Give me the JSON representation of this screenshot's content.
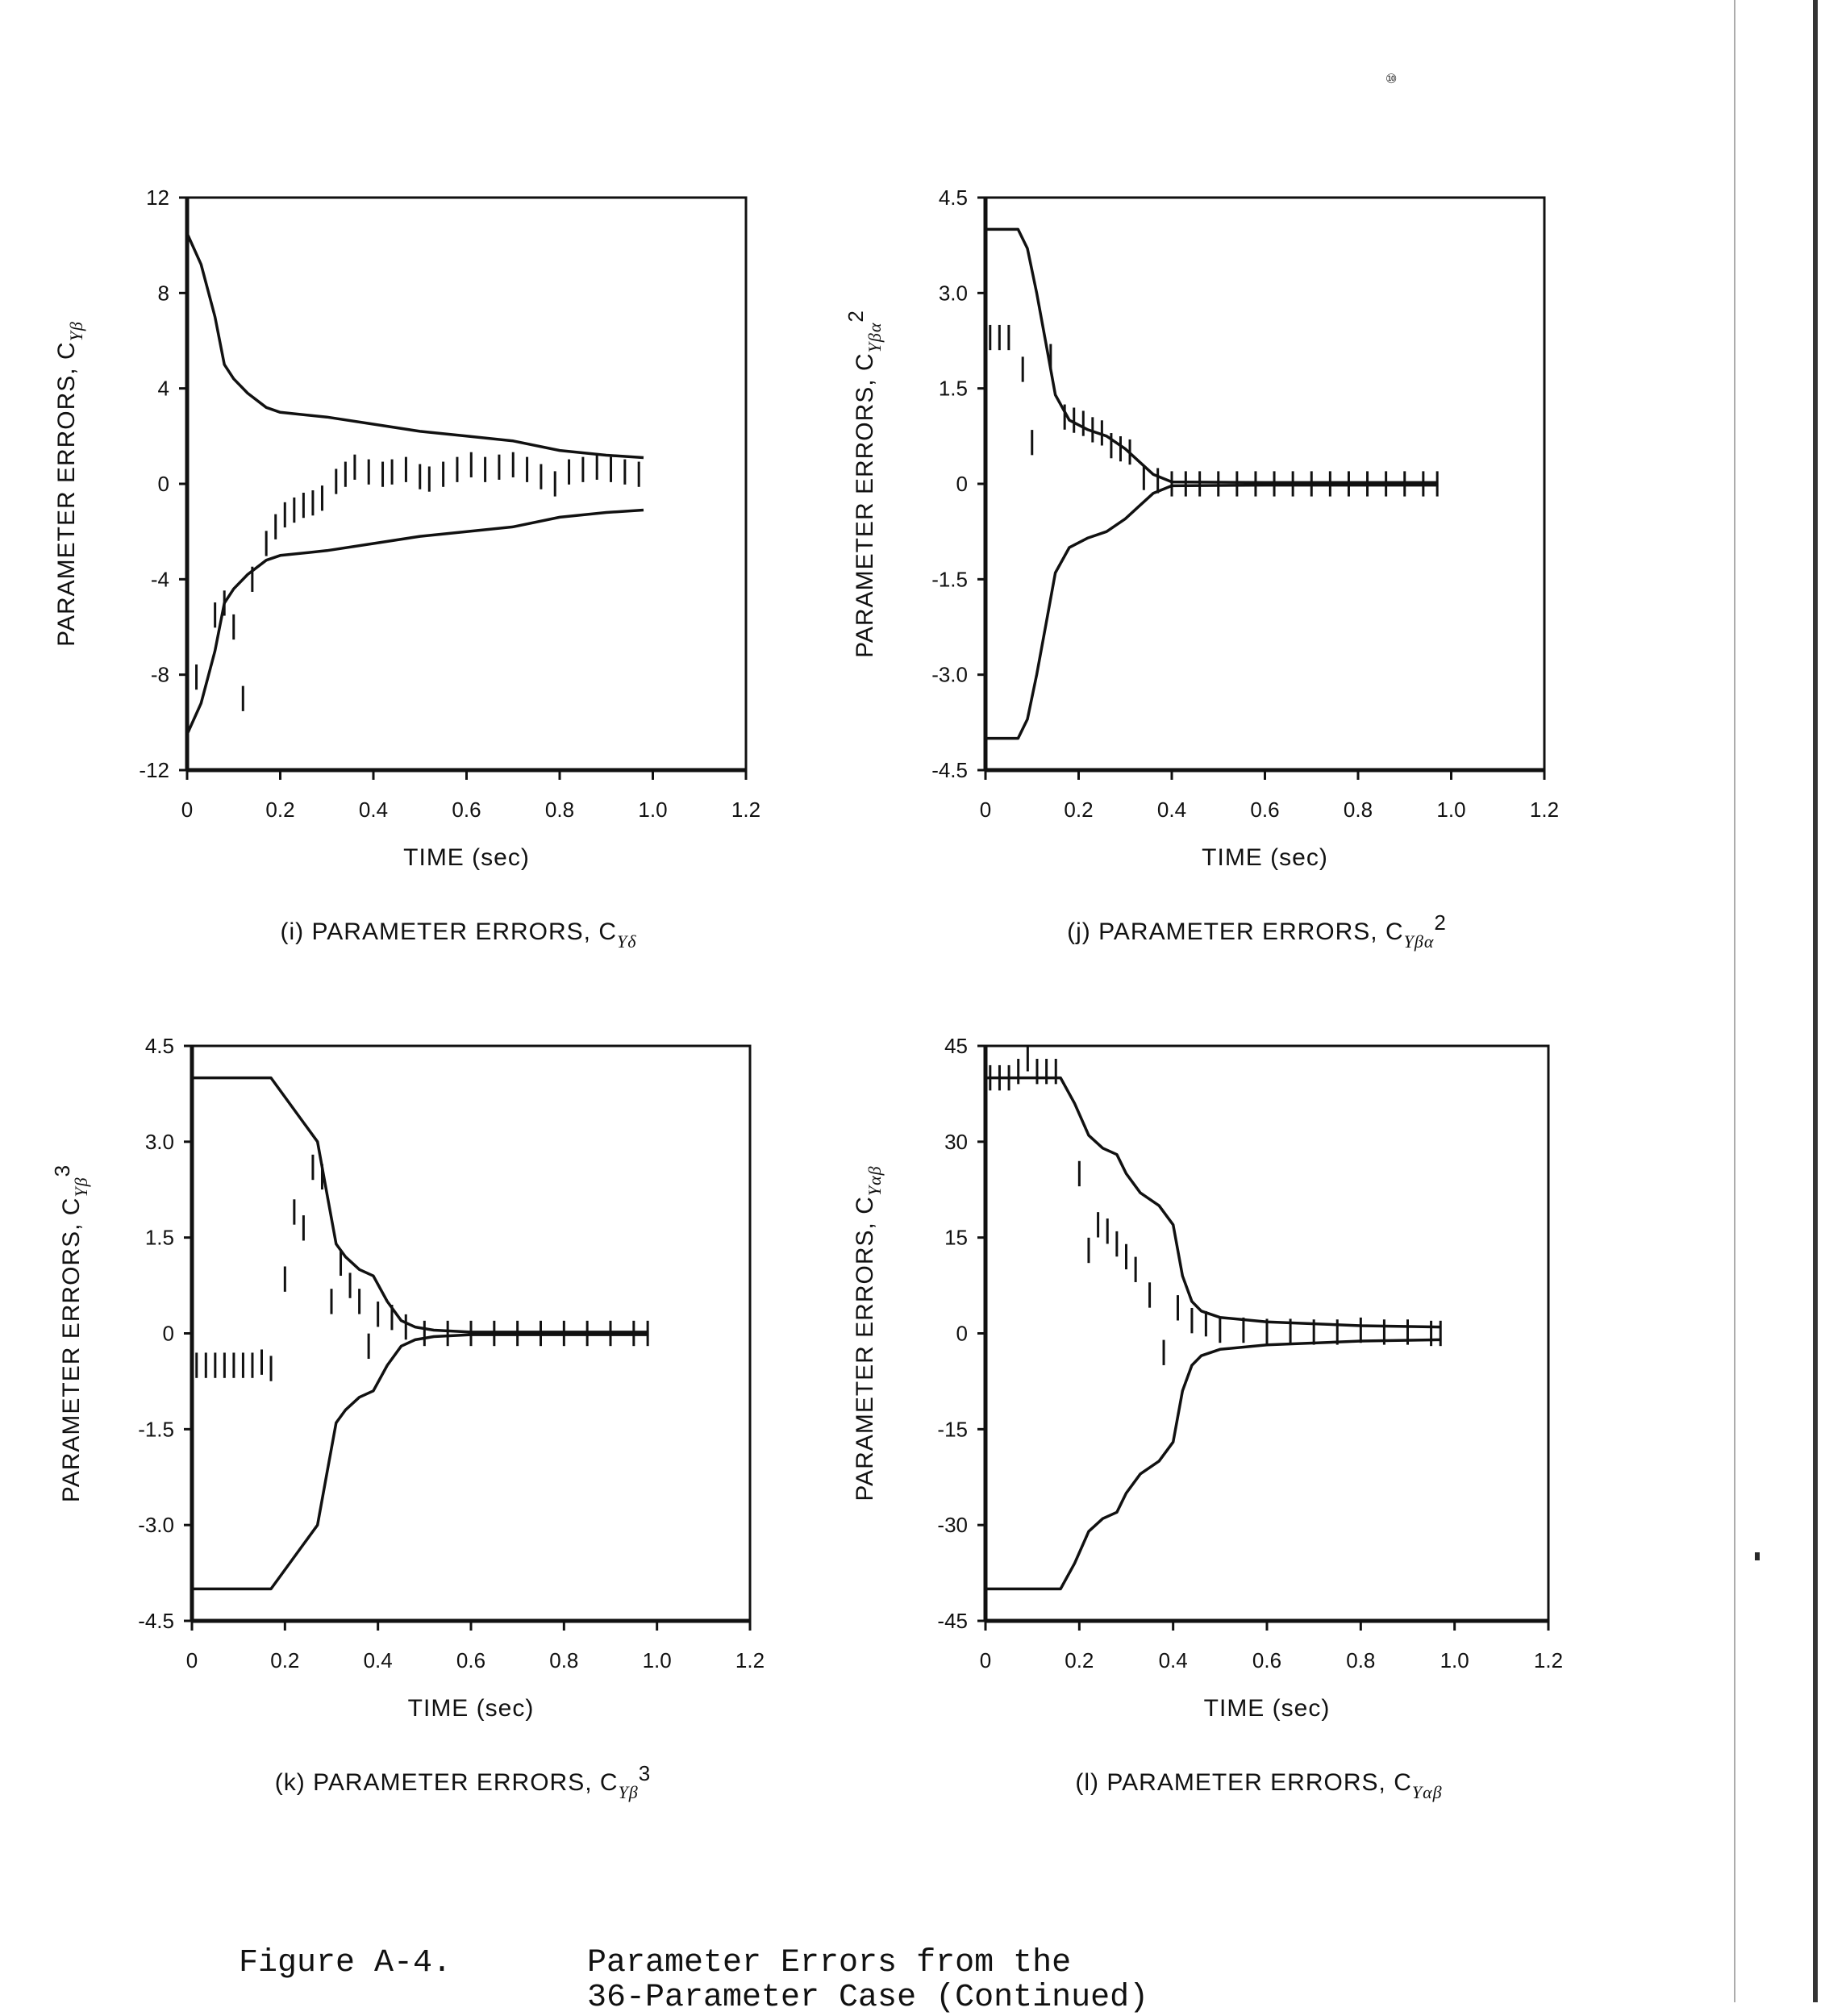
{
  "page": {
    "page_mark": "⑩",
    "figure_label": "Figure A-4.",
    "figure_title_line1": "Parameter Errors from the",
    "figure_title_line2": "36-Parameter Case (Continued)"
  },
  "chart_data": [
    {
      "id": "i",
      "type": "line",
      "title": "(i) PARAMETER ERRORS, C",
      "title_sub": "Yδ",
      "xlabel": "TIME (sec)",
      "ylabel": "PARAMETER ERRORS, C",
      "ylabel_sub": "Yβ",
      "xlim": [
        0,
        1.2
      ],
      "ylim": [
        -12,
        12
      ],
      "xticks": [
        "0",
        "0.2",
        "0.4",
        "0.6",
        "0.8",
        "1.0",
        "1.2"
      ],
      "yticks": [
        "12",
        "8",
        "4",
        "0",
        "-4",
        "-8",
        "-12"
      ],
      "ytick_values": [
        12,
        8,
        4,
        0,
        -4,
        -8,
        -12
      ],
      "grid": false,
      "series": [
        {
          "name": "upper bound",
          "style": "solid",
          "x": [
            0,
            0.03,
            0.06,
            0.08,
            0.1,
            0.13,
            0.17,
            0.2,
            0.3,
            0.4,
            0.5,
            0.6,
            0.7,
            0.8,
            0.9,
            0.98
          ],
          "y": [
            10.5,
            9.2,
            7.0,
            5.0,
            4.4,
            3.8,
            3.2,
            3.0,
            2.8,
            2.5,
            2.2,
            2.0,
            1.8,
            1.4,
            1.2,
            1.1
          ]
        },
        {
          "name": "lower bound",
          "style": "solid",
          "x": [
            0,
            0.03,
            0.06,
            0.08,
            0.1,
            0.13,
            0.17,
            0.2,
            0.3,
            0.4,
            0.5,
            0.6,
            0.7,
            0.8,
            0.9,
            0.98
          ],
          "y": [
            -10.5,
            -9.2,
            -7.0,
            -5.0,
            -4.4,
            -3.8,
            -3.2,
            -3.0,
            -2.8,
            -2.5,
            -2.2,
            -2.0,
            -1.8,
            -1.4,
            -1.2,
            -1.1
          ]
        },
        {
          "name": "parameter error",
          "style": "ticks",
          "x": [
            0.02,
            0.06,
            0.08,
            0.1,
            0.12,
            0.14,
            0.17,
            0.19,
            0.21,
            0.23,
            0.25,
            0.27,
            0.29,
            0.32,
            0.34,
            0.36,
            0.39,
            0.42,
            0.44,
            0.47,
            0.5,
            0.52,
            0.55,
            0.58,
            0.61,
            0.64,
            0.67,
            0.7,
            0.73,
            0.76,
            0.79,
            0.82,
            0.85,
            0.88,
            0.91,
            0.94,
            0.97
          ],
          "y": [
            -8.1,
            -5.5,
            -5.0,
            -6.0,
            -9.0,
            -4.0,
            -2.5,
            -1.8,
            -1.3,
            -1.1,
            -0.9,
            -0.8,
            -0.6,
            0.1,
            0.4,
            0.7,
            0.5,
            0.4,
            0.5,
            0.6,
            0.3,
            0.2,
            0.4,
            0.6,
            0.8,
            0.6,
            0.7,
            0.8,
            0.6,
            0.3,
            0.0,
            0.5,
            0.6,
            0.7,
            0.6,
            0.5,
            0.4
          ]
        }
      ]
    },
    {
      "id": "j",
      "type": "line",
      "title": "(j) PARAMETER ERRORS, C",
      "title_sub": "Yβα",
      "title_sup": "2",
      "xlabel": "TIME (sec)",
      "ylabel": "PARAMETER ERRORS, C",
      "ylabel_sub": "Yβα",
      "ylabel_sup": "2",
      "xlim": [
        0,
        1.2
      ],
      "ylim": [
        -4.5,
        4.5
      ],
      "xticks": [
        "0",
        "0.2",
        "0.4",
        "0.6",
        "0.8",
        "1.0",
        "1.2"
      ],
      "yticks": [
        "4.5",
        "3.0",
        "1.5",
        "0",
        "-1.5",
        "-3.0",
        "-4.5"
      ],
      "ytick_values": [
        4.5,
        3.0,
        1.5,
        0,
        -1.5,
        -3.0,
        -4.5
      ],
      "grid": false,
      "series": [
        {
          "name": "upper bound",
          "style": "solid",
          "x": [
            0,
            0.07,
            0.09,
            0.11,
            0.13,
            0.15,
            0.18,
            0.22,
            0.26,
            0.3,
            0.33,
            0.36,
            0.4,
            0.6,
            0.8,
            0.97
          ],
          "y": [
            4.0,
            4.0,
            3.7,
            3.0,
            2.2,
            1.4,
            1.0,
            0.85,
            0.75,
            0.55,
            0.35,
            0.15,
            0.03,
            0.02,
            0.02,
            0.02
          ]
        },
        {
          "name": "lower bound",
          "style": "solid",
          "x": [
            0,
            0.07,
            0.09,
            0.11,
            0.13,
            0.15,
            0.18,
            0.22,
            0.26,
            0.3,
            0.33,
            0.36,
            0.4,
            0.6,
            0.8,
            0.97
          ],
          "y": [
            -4.0,
            -4.0,
            -3.7,
            -3.0,
            -2.2,
            -1.4,
            -1.0,
            -0.85,
            -0.75,
            -0.55,
            -0.35,
            -0.15,
            -0.03,
            -0.02,
            -0.02,
            -0.02
          ]
        },
        {
          "name": "parameter error",
          "style": "ticks",
          "x": [
            0.01,
            0.03,
            0.05,
            0.08,
            0.1,
            0.14,
            0.17,
            0.19,
            0.21,
            0.23,
            0.25,
            0.27,
            0.29,
            0.31,
            0.34,
            0.37,
            0.4,
            0.43,
            0.46,
            0.5,
            0.54,
            0.58,
            0.62,
            0.66,
            0.7,
            0.74,
            0.78,
            0.82,
            0.86,
            0.9,
            0.94,
            0.97
          ],
          "y": [
            2.3,
            2.3,
            2.3,
            1.8,
            0.65,
            2.0,
            1.05,
            1.0,
            0.95,
            0.85,
            0.8,
            0.6,
            0.55,
            0.5,
            0.1,
            0.05,
            0.0,
            0.0,
            0.0,
            0.0,
            0.0,
            0.0,
            0.0,
            0.0,
            0.0,
            0.0,
            0.0,
            0.0,
            0.0,
            0.0,
            0.0,
            0.0
          ]
        }
      ]
    },
    {
      "id": "k",
      "type": "line",
      "title": "(k) PARAMETER ERRORS, C",
      "title_sub": "Yβ",
      "title_sup": "3",
      "xlabel": "TIME (sec)",
      "ylabel": "PARAMETER ERRORS, C",
      "ylabel_sub": "Yβ",
      "ylabel_sup": "3",
      "xlim": [
        0,
        1.2
      ],
      "ylim": [
        -4.5,
        4.5
      ],
      "xticks": [
        "0",
        "0.2",
        "0.4",
        "0.6",
        "0.8",
        "1.0",
        "1.2"
      ],
      "yticks": [
        "4.5",
        "3.0",
        "1.5",
        "0",
        "-1.5",
        "-3.0",
        "-4.5"
      ],
      "ytick_values": [
        4.5,
        3.0,
        1.5,
        0,
        -1.5,
        -3.0,
        -4.5
      ],
      "grid": false,
      "series": [
        {
          "name": "upper bound",
          "style": "solid",
          "x": [
            0,
            0.17,
            0.2,
            0.24,
            0.27,
            0.29,
            0.31,
            0.33,
            0.36,
            0.39,
            0.42,
            0.45,
            0.48,
            0.52,
            0.6,
            0.8,
            0.98
          ],
          "y": [
            4.0,
            4.0,
            3.7,
            3.3,
            3.0,
            2.2,
            1.4,
            1.2,
            1.0,
            0.9,
            0.5,
            0.2,
            0.1,
            0.05,
            0.02,
            0.02,
            0.02
          ]
        },
        {
          "name": "lower bound",
          "style": "solid",
          "x": [
            0,
            0.17,
            0.2,
            0.24,
            0.27,
            0.29,
            0.31,
            0.33,
            0.36,
            0.39,
            0.42,
            0.45,
            0.48,
            0.52,
            0.6,
            0.8,
            0.98
          ],
          "y": [
            -4.0,
            -4.0,
            -3.7,
            -3.3,
            -3.0,
            -2.2,
            -1.4,
            -1.2,
            -1.0,
            -0.9,
            -0.5,
            -0.2,
            -0.1,
            -0.05,
            -0.02,
            -0.02,
            -0.02
          ]
        },
        {
          "name": "parameter error",
          "style": "ticks",
          "x": [
            0.01,
            0.03,
            0.05,
            0.07,
            0.09,
            0.11,
            0.13,
            0.15,
            0.17,
            0.2,
            0.22,
            0.24,
            0.26,
            0.28,
            0.3,
            0.32,
            0.34,
            0.36,
            0.38,
            0.4,
            0.43,
            0.46,
            0.5,
            0.55,
            0.6,
            0.65,
            0.7,
            0.75,
            0.8,
            0.85,
            0.9,
            0.95,
            0.98
          ],
          "y": [
            -0.5,
            -0.5,
            -0.5,
            -0.5,
            -0.5,
            -0.5,
            -0.5,
            -0.45,
            -0.55,
            0.85,
            1.9,
            1.65,
            2.6,
            2.45,
            0.5,
            1.1,
            0.75,
            0.5,
            -0.2,
            0.3,
            0.25,
            0.1,
            0.0,
            0.0,
            0.0,
            0.0,
            0.0,
            0.0,
            0.0,
            0.0,
            0.0,
            0.0,
            0.0
          ]
        }
      ]
    },
    {
      "id": "l",
      "type": "line",
      "title": "(l) PARAMETER ERRORS, C",
      "title_sub": "Yαβ",
      "xlabel": "TIME (sec)",
      "ylabel": "PARAMETER ERRORS, C",
      "ylabel_sub": "Yαβ",
      "xlim": [
        0,
        1.2
      ],
      "ylim": [
        -45,
        45
      ],
      "xticks": [
        "0",
        "0.2",
        "0.4",
        "0.6",
        "0.8",
        "1.0",
        "1.2"
      ],
      "yticks": [
        "45",
        "30",
        "15",
        "0",
        "-15",
        "-30",
        "-45"
      ],
      "ytick_values": [
        45,
        30,
        15,
        0,
        -15,
        -30,
        -45
      ],
      "grid": false,
      "series": [
        {
          "name": "upper bound",
          "style": "solid",
          "x": [
            0,
            0.16,
            0.19,
            0.22,
            0.25,
            0.28,
            0.3,
            0.33,
            0.37,
            0.4,
            0.42,
            0.44,
            0.46,
            0.5,
            0.6,
            0.8,
            0.97
          ],
          "y": [
            40,
            40,
            36,
            31,
            29,
            28,
            25,
            22,
            20,
            17,
            9,
            5,
            3.5,
            2.5,
            1.8,
            1.2,
            1.0
          ]
        },
        {
          "name": "lower bound",
          "style": "solid",
          "x": [
            0,
            0.16,
            0.19,
            0.22,
            0.25,
            0.28,
            0.3,
            0.33,
            0.37,
            0.4,
            0.42,
            0.44,
            0.46,
            0.5,
            0.6,
            0.8,
            0.97
          ],
          "y": [
            -40,
            -40,
            -36,
            -31,
            -29,
            -28,
            -25,
            -22,
            -20,
            -17,
            -9,
            -5,
            -3.5,
            -2.5,
            -1.8,
            -1.2,
            -1.0
          ]
        },
        {
          "name": "parameter error",
          "style": "ticks",
          "x": [
            0.01,
            0.03,
            0.05,
            0.07,
            0.09,
            0.11,
            0.13,
            0.15,
            0.2,
            0.22,
            0.24,
            0.26,
            0.28,
            0.3,
            0.32,
            0.35,
            0.38,
            0.41,
            0.44,
            0.47,
            0.5,
            0.55,
            0.6,
            0.65,
            0.7,
            0.75,
            0.8,
            0.85,
            0.9,
            0.95,
            0.97
          ],
          "y": [
            40,
            40,
            40,
            41,
            43,
            41,
            41,
            41,
            25,
            13,
            17,
            16,
            14,
            12,
            10,
            6,
            -3,
            4,
            2,
            1.5,
            0.5,
            0.5,
            0.3,
            0.3,
            0.2,
            0.2,
            0.5,
            0.2,
            0.2,
            0.0,
            0.0
          ]
        }
      ]
    }
  ]
}
